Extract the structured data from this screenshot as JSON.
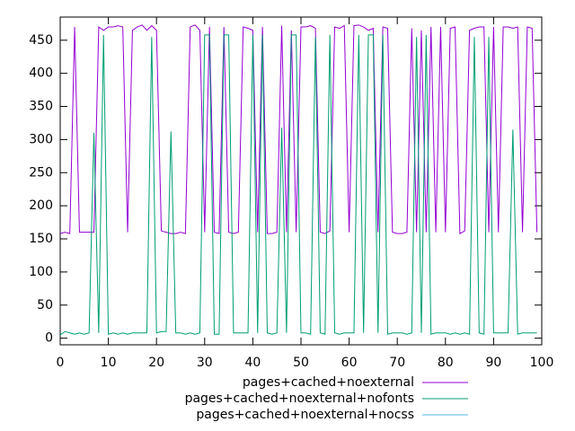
{
  "chart_data": {
    "type": "line",
    "x": [
      0,
      1,
      2,
      3,
      4,
      5,
      6,
      7,
      8,
      9,
      10,
      11,
      12,
      13,
      14,
      15,
      16,
      17,
      18,
      19,
      20,
      21,
      22,
      23,
      24,
      25,
      26,
      27,
      28,
      29,
      30,
      31,
      32,
      33,
      34,
      35,
      36,
      37,
      38,
      39,
      40,
      41,
      42,
      43,
      44,
      45,
      46,
      47,
      48,
      49,
      50,
      51,
      52,
      53,
      54,
      55,
      56,
      57,
      58,
      59,
      60,
      61,
      62,
      63,
      64,
      65,
      66,
      67,
      68,
      69,
      70,
      71,
      72,
      73,
      74,
      75,
      76,
      77,
      78,
      79,
      80,
      81,
      82,
      83,
      84,
      85,
      86,
      87,
      88,
      89,
      90,
      91,
      92,
      93,
      94,
      95,
      96,
      97,
      98,
      99
    ],
    "series": [
      {
        "name": "pages+cached+noexternal",
        "color": "#9400d3",
        "values": [
          158,
          160,
          158,
          470,
          160,
          160,
          160,
          160,
          470,
          465,
          470,
          470,
          472,
          470,
          160,
          465,
          470,
          473,
          465,
          472,
          465,
          162,
          160,
          158,
          158,
          160,
          158,
          470,
          473,
          465,
          160,
          470,
          160,
          158,
          470,
          160,
          158,
          160,
          470,
          468,
          465,
          160,
          470,
          158,
          158,
          160,
          472,
          160,
          465,
          160,
          470,
          470,
          472,
          468,
          160,
          158,
          162,
          470,
          468,
          472,
          160,
          472,
          473,
          470,
          465,
          468,
          160,
          470,
          468,
          160,
          158,
          158,
          160,
          468,
          160,
          465,
          160,
          470,
          160,
          470,
          160,
          468,
          470,
          158,
          162,
          465,
          468,
          470,
          470,
          160,
          470,
          160,
          470,
          470,
          468,
          470,
          160,
          470,
          468,
          160
        ]
      },
      {
        "name": "pages+cached+noexternal+nofonts",
        "color": "#009e73",
        "values": [
          5,
          10,
          8,
          6,
          8,
          6,
          8,
          310,
          8,
          458,
          6,
          8,
          6,
          8,
          6,
          8,
          8,
          8,
          8,
          455,
          8,
          10,
          10,
          312,
          8,
          8,
          6,
          8,
          6,
          8,
          458,
          458,
          6,
          6,
          458,
          458,
          8,
          8,
          8,
          8,
          458,
          8,
          458,
          8,
          6,
          8,
          318,
          8,
          458,
          458,
          8,
          8,
          6,
          455,
          8,
          6,
          458,
          8,
          6,
          8,
          8,
          8,
          458,
          8,
          458,
          458,
          8,
          458,
          6,
          8,
          8,
          8,
          6,
          8,
          455,
          8,
          458,
          6,
          8,
          8,
          8,
          6,
          8,
          6,
          8,
          6,
          455,
          8,
          6,
          455,
          8,
          8,
          8,
          8,
          315,
          6,
          8,
          8,
          8,
          8
        ]
      },
      {
        "name": "pages+cached+noexternal+nocss",
        "color": "#56b4e9",
        "values": [
          null,
          null,
          null,
          null,
          null,
          null,
          null,
          null,
          null,
          null,
          null,
          null,
          null,
          null,
          null,
          null,
          null,
          null,
          null,
          null,
          null,
          null,
          null,
          null,
          null,
          null,
          null,
          null,
          null,
          null,
          null,
          null,
          null,
          null,
          null,
          null,
          null,
          null,
          null,
          null,
          null,
          null,
          null,
          null,
          null,
          null,
          null,
          null,
          null,
          null,
          null,
          null,
          null,
          null,
          null,
          null,
          null,
          null,
          null,
          null,
          null,
          null,
          null,
          null,
          null,
          null,
          null,
          null,
          null,
          null,
          null,
          null,
          null,
          null,
          null,
          null,
          null,
          null,
          null,
          null,
          null,
          null,
          null,
          null,
          null,
          null,
          null,
          null,
          null,
          null,
          null,
          null,
          null,
          null,
          null,
          null,
          null,
          null,
          null,
          null
        ]
      }
    ],
    "xlim": [
      0,
      100
    ],
    "xticks": [
      0,
      10,
      20,
      30,
      40,
      50,
      60,
      70,
      80,
      90,
      100
    ],
    "ylim": [
      -10,
      485
    ],
    "yticks": [
      0,
      50,
      100,
      150,
      200,
      250,
      300,
      350,
      400,
      450
    ]
  }
}
